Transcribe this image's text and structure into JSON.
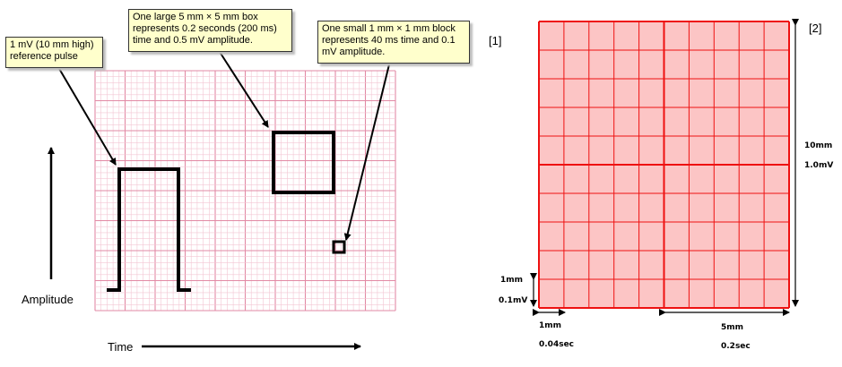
{
  "left_panel": {
    "callout_reference": "1 mV (10 mm high) reference pulse",
    "callout_large_box": "One large 5 mm × 5 mm box represents 0.2 seconds (200 ms) time and 0.5 mV amplitude.",
    "callout_small_block": "One small 1 mm × 1 mm block represents 40 ms time and 0.1 mV amplitude.",
    "amplitude_label": "Amplitude",
    "time_label": "Time"
  },
  "right_panel": {
    "marker_1": "[1]",
    "marker_2": "[2]",
    "height_mm": "10mm",
    "height_mv": "1.0mV",
    "small_mm_vertical": "1mm",
    "small_mv": "0.1mV",
    "small_mm_horizontal": "1mm",
    "small_sec": "0.04sec",
    "large_mm": "5mm",
    "large_sec": "0.2sec"
  },
  "colors": {
    "pink_grid_minor": "#f3c6d3",
    "pink_grid_major": "#e28aa5",
    "red_grid": "#ee1111",
    "red_fill": "#fcc5c5",
    "callout_fill": "#ffffcc"
  }
}
